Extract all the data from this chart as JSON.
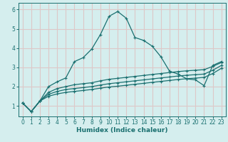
{
  "xlabel": "Humidex (Indice chaleur)",
  "bg_color": "#d5eeee",
  "grid_color": "#ddc8c8",
  "line_color": "#1a7070",
  "xlim": [
    -0.5,
    23.5
  ],
  "ylim": [
    0.45,
    6.35
  ],
  "xticks": [
    0,
    1,
    2,
    3,
    4,
    5,
    6,
    7,
    8,
    9,
    10,
    11,
    12,
    13,
    14,
    15,
    16,
    17,
    18,
    19,
    20,
    21,
    22,
    23
  ],
  "yticks": [
    1,
    2,
    3,
    4,
    5,
    6
  ],
  "series1": {
    "x": [
      0,
      1,
      2,
      3,
      4,
      5,
      6,
      7,
      8,
      9,
      10,
      11,
      12,
      13,
      14,
      15,
      16,
      17,
      18,
      19,
      20,
      21,
      22,
      23
    ],
    "y": [
      1.15,
      0.7,
      1.25,
      2.0,
      2.25,
      2.45,
      3.3,
      3.5,
      3.95,
      4.7,
      5.65,
      5.9,
      5.55,
      4.55,
      4.4,
      4.1,
      3.55,
      2.8,
      2.65,
      2.4,
      2.35,
      2.05,
      3.1,
      3.3
    ]
  },
  "series2": {
    "x": [
      0,
      1,
      2,
      3,
      4,
      5,
      6,
      7,
      8,
      9,
      10,
      11,
      12,
      13,
      14,
      15,
      16,
      17,
      18,
      19,
      20,
      21,
      22,
      23
    ],
    "y": [
      1.15,
      0.7,
      1.25,
      1.7,
      1.9,
      2.0,
      2.1,
      2.15,
      2.2,
      2.3,
      2.38,
      2.43,
      2.48,
      2.53,
      2.58,
      2.63,
      2.68,
      2.73,
      2.78,
      2.82,
      2.85,
      2.88,
      3.05,
      3.25
    ]
  },
  "series3": {
    "x": [
      0,
      1,
      2,
      3,
      4,
      5,
      6,
      7,
      8,
      9,
      10,
      11,
      12,
      13,
      14,
      15,
      16,
      17,
      18,
      19,
      20,
      21,
      22,
      23
    ],
    "y": [
      1.15,
      0.7,
      1.25,
      1.6,
      1.75,
      1.85,
      1.9,
      1.95,
      2.0,
      2.08,
      2.15,
      2.2,
      2.25,
      2.3,
      2.35,
      2.4,
      2.45,
      2.5,
      2.55,
      2.59,
      2.62,
      2.65,
      2.85,
      3.1
    ]
  },
  "series4": {
    "x": [
      0,
      1,
      2,
      3,
      4,
      5,
      6,
      7,
      8,
      9,
      10,
      11,
      12,
      13,
      14,
      15,
      16,
      17,
      18,
      19,
      20,
      21,
      22,
      23
    ],
    "y": [
      1.15,
      0.7,
      1.25,
      1.5,
      1.62,
      1.7,
      1.75,
      1.8,
      1.85,
      1.92,
      1.98,
      2.02,
      2.07,
      2.12,
      2.17,
      2.22,
      2.27,
      2.32,
      2.37,
      2.41,
      2.44,
      2.48,
      2.68,
      2.95
    ]
  }
}
